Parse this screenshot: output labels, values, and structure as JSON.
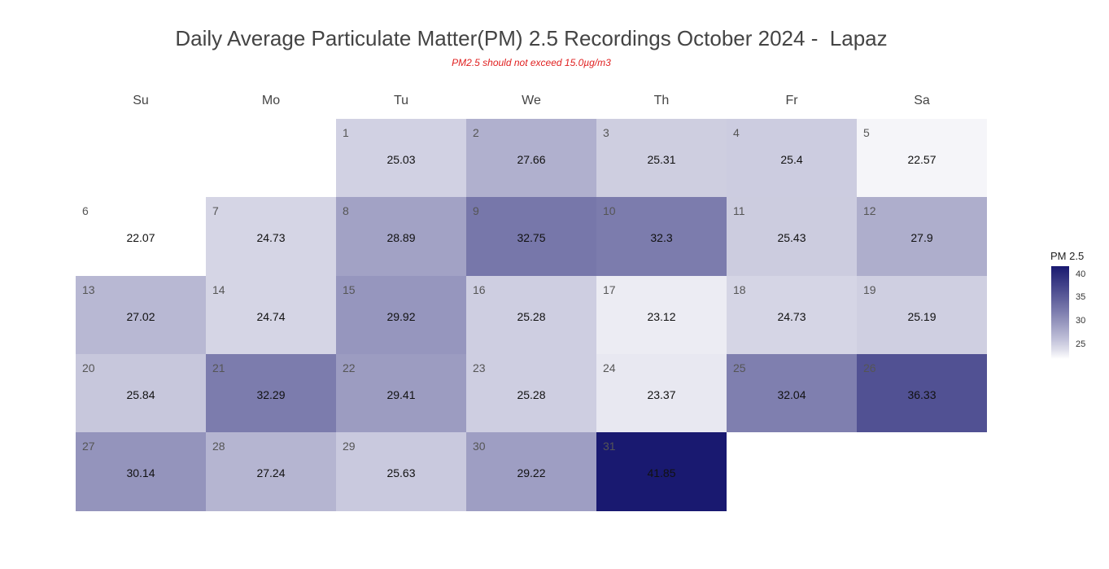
{
  "chart_data": {
    "type": "heatmap",
    "title": "Daily Average Particulate Matter(PM) 2.5 Recordings October 2024 -  Lapaz",
    "subtitle": "PM2.5 should not exceed 15.0µg/m3",
    "weekdays": [
      "Su",
      "Mo",
      "Tu",
      "We",
      "Th",
      "Fr",
      "Sa"
    ],
    "first_weekday_index": 2,
    "days": [
      1,
      2,
      3,
      4,
      5,
      6,
      7,
      8,
      9,
      10,
      11,
      12,
      13,
      14,
      15,
      16,
      17,
      18,
      19,
      20,
      21,
      22,
      23,
      24,
      25,
      26,
      27,
      28,
      29,
      30,
      31
    ],
    "day_labels": [
      "1",
      "2",
      "3",
      "4",
      "5",
      "6",
      "7",
      "8",
      "9",
      "10",
      "11",
      "12",
      "13",
      "14",
      "15",
      "16",
      "17",
      "18",
      "19",
      "20",
      "21",
      "22",
      "23",
      "24",
      "25",
      "26",
      "27",
      "28",
      "29",
      "30",
      "31"
    ],
    "value_labels": [
      "25.03",
      "27.66",
      "25.31",
      "25.4",
      "22.57",
      "22.07",
      "24.73",
      "28.89",
      "32.75",
      "32.3",
      "25.43",
      "27.9",
      "27.02",
      "24.74",
      "29.92",
      "25.28",
      "23.12",
      "24.73",
      "25.19",
      "25.84",
      "32.29",
      "29.41",
      "25.28",
      "23.37",
      "32.04",
      "36.33",
      "30.14",
      "27.24",
      "25.63",
      "29.22",
      "41.85"
    ],
    "values": [
      25.03,
      27.66,
      25.31,
      25.4,
      22.57,
      22.07,
      24.73,
      28.89,
      32.75,
      32.3,
      25.43,
      27.9,
      27.02,
      24.74,
      29.92,
      25.28,
      23.12,
      24.73,
      25.19,
      25.84,
      32.29,
      29.41,
      25.28,
      23.37,
      32.04,
      36.33,
      30.14,
      27.24,
      25.63,
      29.22,
      41.85
    ],
    "legend": {
      "title": "PM 2.5",
      "ticks": [
        25,
        30,
        35,
        40
      ],
      "tick_labels": [
        "25",
        "30",
        "35",
        "40"
      ],
      "range": [
        22.07,
        41.85
      ],
      "low_color": "#ffffff",
      "high_color": "#191970"
    }
  }
}
